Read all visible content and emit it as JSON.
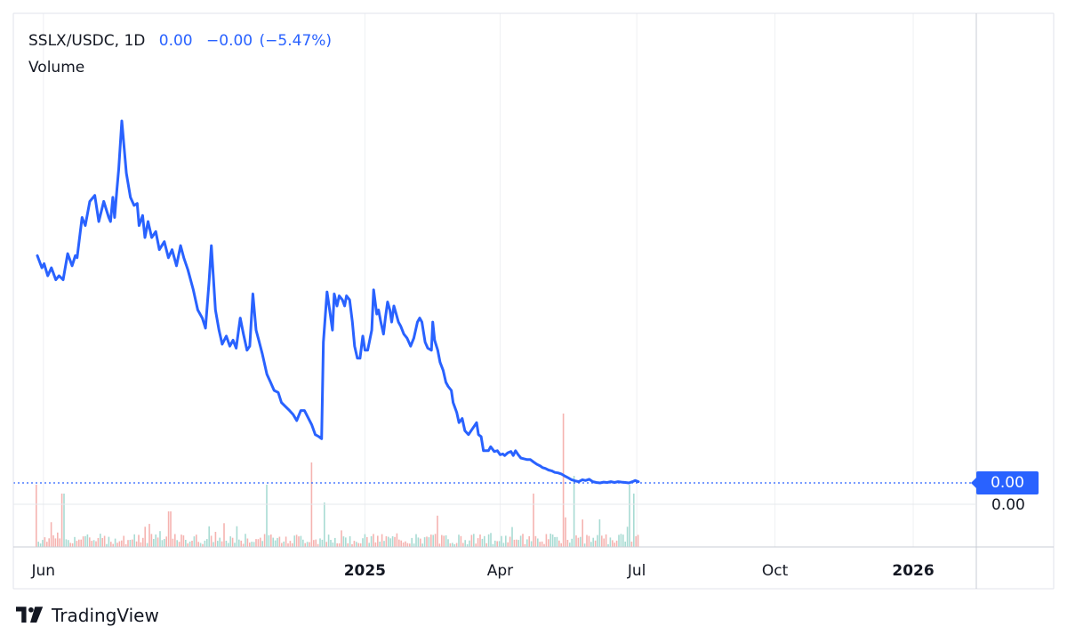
{
  "header": {
    "symbol": "SSLX/USDC",
    "separator": ",",
    "interval": "1D",
    "last_price": "0.00",
    "change": "−0.00",
    "change_pct": "(−5.47%)"
  },
  "volume_label": "Volume",
  "price_axis_tag": "0.00",
  "volume_axis_label": "0.00",
  "branding": "TradingView",
  "colors": {
    "line": "#2962ff",
    "volume_up": "#a8dbd3",
    "volume_down": "#f5b3b0",
    "grid": "#eef0f3",
    "price_tag": "#2962ff"
  },
  "chart_data": {
    "type": "line",
    "title": "SSLX/USDC, 1D",
    "xlabel": "",
    "ylabel": "",
    "x_tick_labels": [
      {
        "label": "Jun",
        "date": "2024-06-01",
        "bold": false
      },
      {
        "label": "2025",
        "date": "2025-01-01",
        "bold": true
      },
      {
        "label": "Apr",
        "date": "2025-04-01",
        "bold": false
      },
      {
        "label": "Jul",
        "date": "2025-07-01",
        "bold": false
      },
      {
        "label": "Oct",
        "date": "2025-10-01",
        "bold": false
      },
      {
        "label": "2026",
        "date": "2026-01-01",
        "bold": true
      }
    ],
    "x_range": [
      "2024-05-12",
      "2026-02-12"
    ],
    "y_range_relative": [
      0,
      1
    ],
    "grid": true,
    "series": [
      {
        "values_relative": [
          [
            0.0,
            0.565
          ],
          [
            0.005,
            0.535
          ],
          [
            0.0075,
            0.545
          ],
          [
            0.0115,
            0.515
          ],
          [
            0.0155,
            0.535
          ],
          [
            0.0205,
            0.505
          ],
          [
            0.024,
            0.515
          ],
          [
            0.0285,
            0.505
          ],
          [
            0.0335,
            0.57
          ],
          [
            0.0385,
            0.54
          ],
          [
            0.042,
            0.565
          ],
          [
            0.044,
            0.56
          ],
          [
            0.0495,
            0.66
          ],
          [
            0.053,
            0.64
          ],
          [
            0.058,
            0.7
          ],
          [
            0.0635,
            0.715
          ],
          [
            0.068,
            0.65
          ],
          [
            0.0735,
            0.7
          ],
          [
            0.079,
            0.66
          ],
          [
            0.081,
            0.65
          ],
          [
            0.0835,
            0.71
          ],
          [
            0.0855,
            0.66
          ],
          [
            0.088,
            0.73
          ],
          [
            0.09,
            0.78
          ],
          [
            0.0935,
            0.9
          ],
          [
            0.0985,
            0.77
          ],
          [
            0.103,
            0.71
          ],
          [
            0.107,
            0.69
          ],
          [
            0.1105,
            0.695
          ],
          [
            0.1125,
            0.64
          ],
          [
            0.1165,
            0.665
          ],
          [
            0.119,
            0.61
          ],
          [
            0.1225,
            0.65
          ],
          [
            0.1265,
            0.61
          ],
          [
            0.131,
            0.625
          ],
          [
            0.135,
            0.58
          ],
          [
            0.1405,
            0.6
          ],
          [
            0.145,
            0.56
          ],
          [
            0.149,
            0.58
          ],
          [
            0.154,
            0.54
          ],
          [
            0.1585,
            0.59
          ],
          [
            0.162,
            0.56
          ],
          [
            0.1665,
            0.53
          ],
          [
            0.1725,
            0.48
          ],
          [
            0.1775,
            0.43
          ],
          [
            0.1825,
            0.41
          ],
          [
            0.186,
            0.385
          ],
          [
            0.19,
            0.5
          ],
          [
            0.1925,
            0.59
          ],
          [
            0.197,
            0.43
          ],
          [
            0.201,
            0.38
          ],
          [
            0.2045,
            0.345
          ],
          [
            0.209,
            0.365
          ],
          [
            0.213,
            0.34
          ],
          [
            0.2165,
            0.355
          ],
          [
            0.22,
            0.335
          ],
          [
            0.2245,
            0.41
          ],
          [
            0.228,
            0.37
          ],
          [
            0.232,
            0.33
          ],
          [
            0.235,
            0.34
          ],
          [
            0.2385,
            0.47
          ],
          [
            0.242,
            0.38
          ],
          [
            0.2455,
            0.35
          ],
          [
            0.249,
            0.32
          ],
          [
            0.254,
            0.27
          ],
          [
            0.258,
            0.25
          ],
          [
            0.262,
            0.23
          ],
          [
            0.2665,
            0.225
          ],
          [
            0.27,
            0.2
          ],
          [
            0.2745,
            0.19
          ],
          [
            0.279,
            0.18
          ],
          [
            0.283,
            0.17
          ],
          [
            0.287,
            0.155
          ],
          [
            0.2915,
            0.18
          ],
          [
            0.2955,
            0.18
          ],
          [
            0.299,
            0.165
          ],
          [
            0.3035,
            0.145
          ],
          [
            0.3075,
            0.12
          ],
          [
            0.3115,
            0.115
          ],
          [
            0.3145,
            0.11
          ],
          [
            0.3165,
            0.35
          ],
          [
            0.3205,
            0.475
          ],
          [
            0.324,
            0.42
          ],
          [
            0.3265,
            0.38
          ],
          [
            0.3285,
            0.47
          ],
          [
            0.3315,
            0.44
          ],
          [
            0.334,
            0.465
          ],
          [
            0.3375,
            0.455
          ],
          [
            0.34,
            0.44
          ],
          [
            0.342,
            0.465
          ],
          [
            0.3455,
            0.455
          ],
          [
            0.3485,
            0.4
          ],
          [
            0.351,
            0.34
          ],
          [
            0.354,
            0.31
          ],
          [
            0.357,
            0.31
          ],
          [
            0.36,
            0.365
          ],
          [
            0.3625,
            0.33
          ],
          [
            0.3655,
            0.33
          ],
          [
            0.37,
            0.38
          ],
          [
            0.372,
            0.48
          ],
          [
            0.3755,
            0.42
          ],
          [
            0.3775,
            0.43
          ],
          [
            0.38,
            0.4
          ],
          [
            0.383,
            0.37
          ],
          [
            0.385,
            0.41
          ],
          [
            0.3875,
            0.45
          ],
          [
            0.39,
            0.43
          ],
          [
            0.392,
            0.4
          ],
          [
            0.3945,
            0.44
          ],
          [
            0.397,
            0.42
          ],
          [
            0.3995,
            0.4
          ],
          [
            0.402,
            0.39
          ],
          [
            0.4055,
            0.37
          ],
          [
            0.409,
            0.36
          ],
          [
            0.413,
            0.34
          ],
          [
            0.4165,
            0.36
          ],
          [
            0.4205,
            0.4
          ],
          [
            0.423,
            0.41
          ],
          [
            0.4255,
            0.4
          ],
          [
            0.429,
            0.35
          ],
          [
            0.432,
            0.335
          ],
          [
            0.436,
            0.33
          ],
          [
            0.4375,
            0.4
          ],
          [
            0.4395,
            0.355
          ],
          [
            0.443,
            0.33
          ],
          [
            0.4455,
            0.3
          ],
          [
            0.449,
            0.28
          ],
          [
            0.452,
            0.25
          ],
          [
            0.4545,
            0.24
          ],
          [
            0.458,
            0.23
          ],
          [
            0.46,
            0.2
          ],
          [
            0.464,
            0.175
          ],
          [
            0.4665,
            0.15
          ],
          [
            0.47,
            0.16
          ],
          [
            0.473,
            0.13
          ],
          [
            0.477,
            0.12
          ],
          [
            0.48,
            0.13
          ],
          [
            0.483,
            0.14
          ],
          [
            0.486,
            0.15
          ],
          [
            0.488,
            0.12
          ],
          [
            0.491,
            0.115
          ],
          [
            0.4935,
            0.08
          ],
          [
            0.4965,
            0.08
          ],
          [
            0.499,
            0.08
          ],
          [
            0.5015,
            0.09
          ],
          [
            0.5055,
            0.078
          ],
          [
            0.509,
            0.08
          ],
          [
            0.512,
            0.07
          ],
          [
            0.515,
            0.072
          ],
          [
            0.517,
            0.068
          ],
          [
            0.5205,
            0.075
          ],
          [
            0.524,
            0.078
          ],
          [
            0.5265,
            0.068
          ],
          [
            0.529,
            0.08
          ],
          [
            0.532,
            0.07
          ],
          [
            0.535,
            0.062
          ],
          [
            0.5385,
            0.06
          ],
          [
            0.542,
            0.058
          ],
          [
            0.5455,
            0.058
          ],
          [
            0.549,
            0.052
          ],
          [
            0.553,
            0.046
          ],
          [
            0.5565,
            0.042
          ],
          [
            0.559,
            0.038
          ],
          [
            0.562,
            0.036
          ],
          [
            0.5655,
            0.032
          ],
          [
            0.569,
            0.03
          ],
          [
            0.5725,
            0.026
          ],
          [
            0.576,
            0.025
          ],
          [
            0.58,
            0.022
          ],
          [
            0.583,
            0.018
          ],
          [
            0.587,
            0.013
          ],
          [
            0.591,
            0.008
          ],
          [
            0.595,
            0.005
          ],
          [
            0.599,
            0.003
          ],
          [
            0.603,
            0.008
          ],
          [
            0.6065,
            0.006
          ],
          [
            0.6105,
            0.009
          ],
          [
            0.6145,
            0.003
          ],
          [
            0.6185,
            0.001
          ],
          [
            0.6225,
            0.0
          ],
          [
            0.6265,
            0.002
          ],
          [
            0.6305,
            0.001
          ],
          [
            0.6345,
            0.003
          ],
          [
            0.6385,
            0.001
          ],
          [
            0.6425,
            0.003
          ],
          [
            0.6465,
            0.002
          ],
          [
            0.6505,
            0.001
          ],
          [
            0.6545,
            0.0
          ],
          [
            0.6585,
            0.003
          ],
          [
            0.6615,
            0.006
          ],
          [
            0.665,
            0.003
          ]
        ]
      }
    ],
    "last_value_label": "0.00",
    "volume_panel": true
  }
}
